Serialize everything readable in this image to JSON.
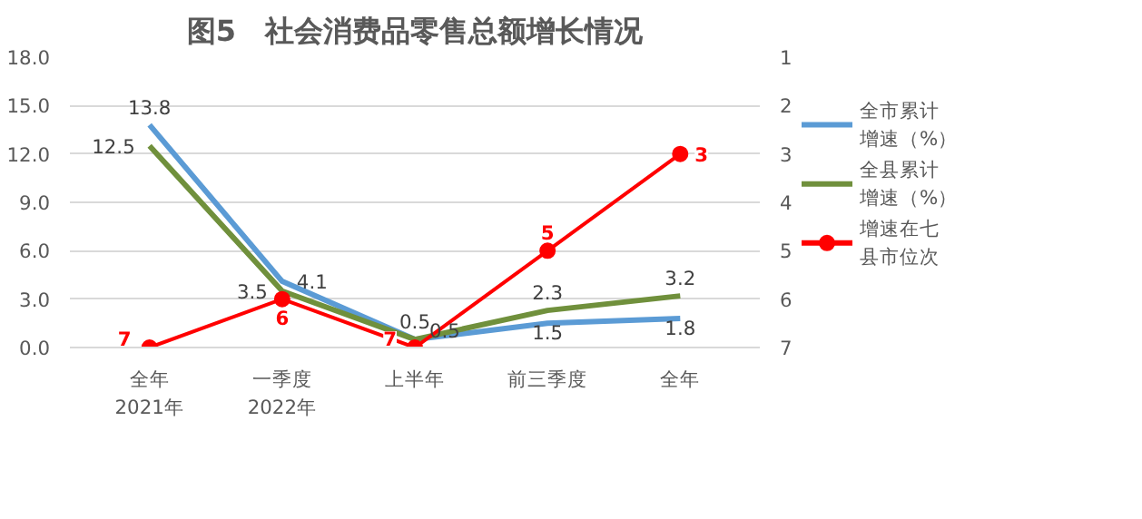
{
  "chart_data": {
    "type": "line",
    "title": "图5　社会消费品零售总额增长情况",
    "categories": [
      "全年\n2021年",
      "一季度\n2022年",
      "上半年",
      "前三季度",
      "全年"
    ],
    "series": [
      {
        "name": "全市累计增速（%）",
        "color": "#5b9bd5",
        "values": [
          13.8,
          4.1,
          0.5,
          1.5,
          1.8
        ],
        "marker": "none"
      },
      {
        "name": "全县累计增速（%）",
        "color": "#70903c",
        "values": [
          12.5,
          3.5,
          0.5,
          2.3,
          3.2
        ],
        "marker": "none"
      },
      {
        "name": "增速在七县市位次",
        "color": "#ff0000",
        "values": [
          7,
          6,
          7,
          5,
          3
        ],
        "axis": "y2",
        "marker": "circle"
      }
    ],
    "ylim": [
      0,
      18
    ],
    "yticks": [
      {
        "value": 0,
        "label": "0.0"
      },
      {
        "value": 3,
        "label": "3.0"
      },
      {
        "value": 6,
        "label": "6.0"
      },
      {
        "value": 9,
        "label": "9.0"
      },
      {
        "value": 12,
        "label": "12.0"
      },
      {
        "value": 15,
        "label": "15.0"
      },
      {
        "value": 18,
        "label": "18.0"
      }
    ],
    "y2lim": [
      7,
      1
    ],
    "y2ticks": [
      1,
      2,
      3,
      4,
      5,
      6,
      7
    ],
    "grid": "y",
    "legend": "right",
    "data_labels": true
  }
}
